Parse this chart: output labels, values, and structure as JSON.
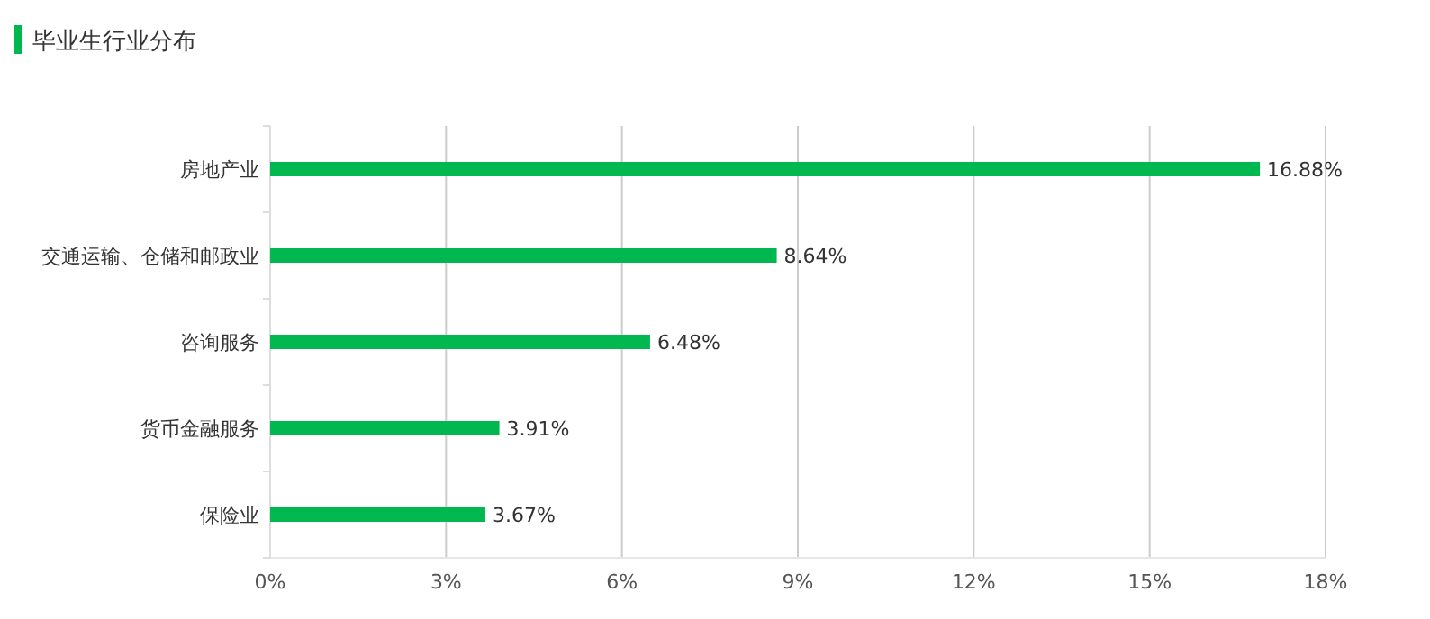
{
  "chart_data": {
    "type": "bar",
    "orientation": "horizontal",
    "title": "毕业生行业分布",
    "categories": [
      "房地产业",
      "交通运输、仓储和邮政业",
      "咨询服务",
      "货币金融服务",
      "保险业"
    ],
    "values": [
      16.88,
      8.64,
      6.48,
      3.91,
      3.67
    ],
    "value_labels": [
      "16.88%",
      "8.64%",
      "6.48%",
      "3.91%",
      "3.67%"
    ],
    "color": "#00b84f",
    "xlim": [
      0,
      18
    ],
    "xticks": [
      {
        "value": 0,
        "label": "0%"
      },
      {
        "value": 3,
        "label": "3%"
      },
      {
        "value": 6,
        "label": "6%"
      },
      {
        "value": 9,
        "label": "9%"
      },
      {
        "value": 12,
        "label": "12%"
      },
      {
        "value": 15,
        "label": "15%"
      },
      {
        "value": 18,
        "label": "18%"
      }
    ],
    "grid": "x"
  }
}
